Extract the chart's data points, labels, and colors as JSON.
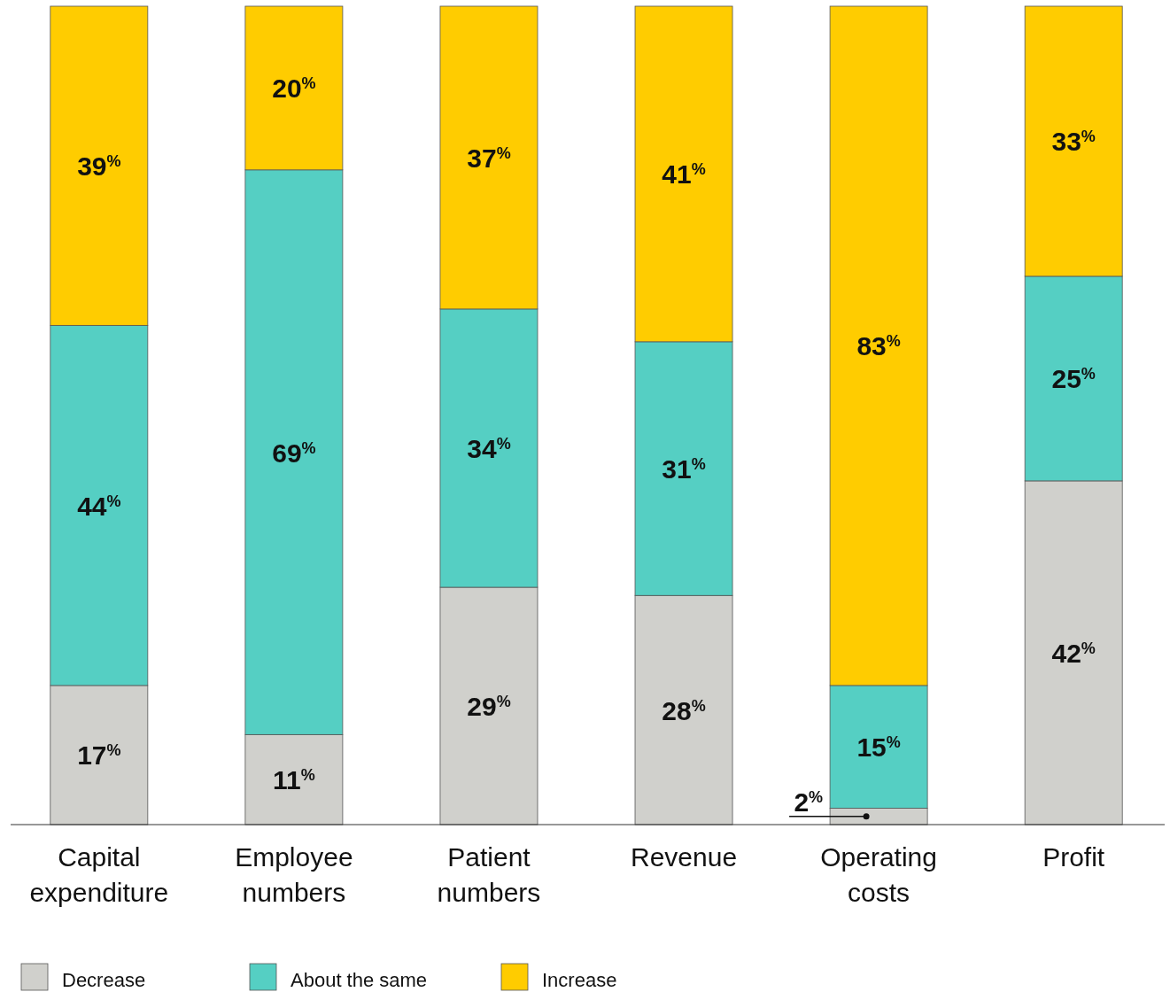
{
  "chart_data": {
    "type": "bar",
    "stacked": true,
    "categories": [
      "Capital expenditure",
      "Employee numbers",
      "Patient numbers",
      "Revenue",
      "Operating costs",
      "Profit"
    ],
    "ylim": [
      0,
      100
    ],
    "legend": "bottom left",
    "series": [
      {
        "name": "Decrease",
        "color": "#d0d0cc",
        "values": [
          17,
          11,
          29,
          28,
          2,
          42
        ],
        "value_labels": [
          "17$^{%}$",
          "11$^{%}$",
          "29$^{%}$",
          "28$^{%}$",
          "2$^{%}$",
          "42$^{%}$"
        ]
      },
      {
        "name": "About the same",
        "color": "#55cfc3",
        "values": [
          44,
          69,
          34,
          31,
          15,
          25
        ],
        "value_labels": [
          "44$^{%}$",
          "69$^{%}$",
          "34$^{%}$",
          "31$^{%}$",
          "15$^{%}$",
          "25$^{%}$"
        ]
      },
      {
        "name": "Increase",
        "color": "#ffcc00",
        "values": [
          39,
          20,
          37,
          41,
          83,
          33
        ],
        "value_labels": [
          "39$^{%}$",
          "20$^{%}$",
          "37$^{%}$",
          "41$^{%}$",
          "83$^{%}$",
          "33$^{%}$"
        ]
      }
    ]
  }
}
